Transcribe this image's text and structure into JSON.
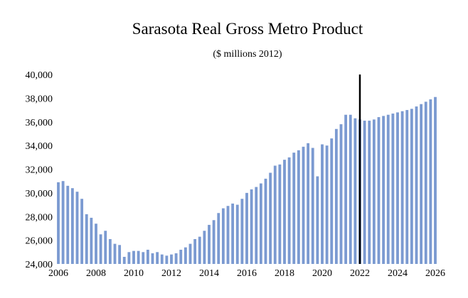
{
  "chart_data": {
    "type": "bar",
    "title": "Sarasota Real Gross Metro Product",
    "subtitle": "($ millions 2012)",
    "xlabel": "",
    "ylabel": "",
    "ylim": [
      24000,
      40000
    ],
    "y_ticks": [
      24000,
      26000,
      28000,
      30000,
      32000,
      34000,
      36000,
      38000,
      40000
    ],
    "y_tick_labels": [
      "24,000",
      "26,000",
      "28,000",
      "30,000",
      "32,000",
      "34,000",
      "36,000",
      "38,000",
      "40,000"
    ],
    "x_ticks": [
      2006,
      2008,
      2010,
      2012,
      2014,
      2016,
      2018,
      2020,
      2022,
      2024,
      2026
    ],
    "x_tick_labels": [
      "2006",
      "2008",
      "2010",
      "2012",
      "2014",
      "2016",
      "2018",
      "2020",
      "2022",
      "2024",
      "2026"
    ],
    "xlim": [
      2006,
      2026
    ],
    "start_year": 2006,
    "quarterly": true,
    "vertical_line_at": 2022,
    "grid": false,
    "bar_color": "#7b9ad1",
    "line_color": "#000000",
    "values": [
      30900,
      31000,
      30600,
      30400,
      30100,
      29500,
      28200,
      27900,
      27400,
      26500,
      26800,
      26100,
      25700,
      25600,
      24600,
      25000,
      25100,
      25100,
      25000,
      25200,
      24900,
      25000,
      24800,
      24700,
      24800,
      24900,
      25200,
      25400,
      25700,
      26100,
      26300,
      26800,
      27300,
      27700,
      28300,
      28700,
      28900,
      29100,
      29000,
      29500,
      30000,
      30300,
      30500,
      30800,
      31200,
      31700,
      32300,
      32400,
      32800,
      33000,
      33400,
      33600,
      33900,
      34200,
      33800,
      31400,
      34100,
      34000,
      34600,
      35400,
      35800,
      36600,
      36600,
      36300,
      36200,
      36100,
      36100,
      36200,
      36400,
      36500,
      36600,
      36700,
      36800,
      36900,
      37000,
      37100,
      37300,
      37500,
      37700,
      37900,
      38100
    ]
  }
}
